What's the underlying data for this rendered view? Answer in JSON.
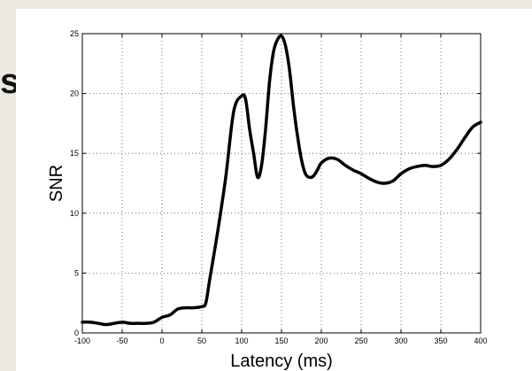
{
  "chart_data": {
    "type": "line",
    "title": "",
    "xlabel": "Latency (ms)",
    "ylabel": "SNR",
    "xlim": [
      -100,
      400
    ],
    "ylim": [
      0,
      25
    ],
    "x_ticks": [
      -100,
      -50,
      0,
      50,
      100,
      150,
      200,
      250,
      300,
      350,
      400
    ],
    "y_ticks": [
      0,
      5,
      10,
      15,
      20,
      25
    ],
    "grid": true,
    "grid_style": "dotted",
    "line_color": "#000000",
    "series": [
      {
        "name": "",
        "x": [
          -100,
          -90,
          -80,
          -70,
          -60,
          -50,
          -40,
          -30,
          -20,
          -10,
          0,
          10,
          20,
          30,
          40,
          50,
          55,
          60,
          70,
          80,
          90,
          100,
          105,
          110,
          115,
          120,
          125,
          130,
          135,
          140,
          145,
          150,
          155,
          160,
          165,
          170,
          175,
          180,
          185,
          190,
          195,
          200,
          210,
          220,
          230,
          240,
          250,
          260,
          270,
          280,
          290,
          300,
          310,
          320,
          330,
          340,
          350,
          360,
          370,
          380,
          390,
          400
        ],
        "y": [
          0.9,
          0.9,
          0.8,
          0.7,
          0.8,
          0.9,
          0.8,
          0.8,
          0.8,
          0.9,
          1.3,
          1.5,
          2.0,
          2.1,
          2.1,
          2.2,
          2.5,
          4.5,
          8.5,
          13.0,
          18.5,
          19.8,
          19.5,
          17.0,
          15.0,
          13.0,
          14.0,
          17.0,
          21.0,
          23.5,
          24.5,
          24.8,
          24.0,
          22.0,
          19.0,
          16.5,
          14.5,
          13.3,
          13.0,
          13.1,
          13.6,
          14.2,
          14.6,
          14.5,
          14.0,
          13.6,
          13.3,
          12.9,
          12.6,
          12.5,
          12.7,
          13.3,
          13.7,
          13.9,
          14.0,
          13.9,
          14.0,
          14.5,
          15.3,
          16.3,
          17.2,
          17.6
        ]
      }
    ]
  },
  "left_glyph": "s"
}
